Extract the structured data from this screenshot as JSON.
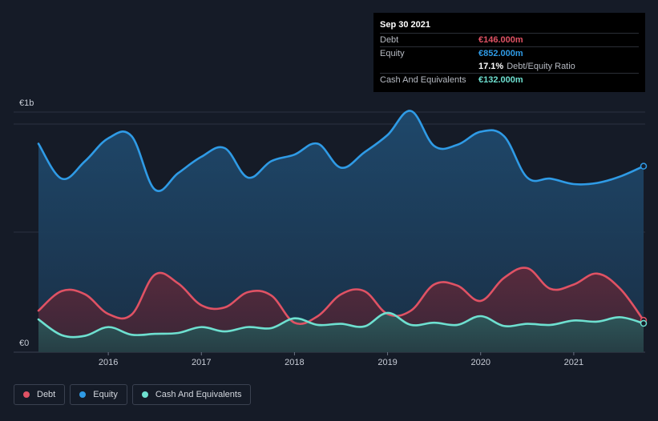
{
  "tooltip": {
    "date": "Sep 30 2021",
    "debt_label": "Debt",
    "debt_value": "€146.000m",
    "equity_label": "Equity",
    "equity_value": "€852.000m",
    "ratio_value": "17.1%",
    "ratio_label": "Debt/Equity Ratio",
    "cash_label": "Cash And Equivalents",
    "cash_value": "€132.000m"
  },
  "legend": [
    {
      "label": "Debt",
      "color": "#e05264"
    },
    {
      "label": "Equity",
      "color": "#2f9be6"
    },
    {
      "label": "Cash And Equivalents",
      "color": "#6ee0d0"
    }
  ],
  "chart_data": {
    "type": "area",
    "y_unit": "€m",
    "ylim": [
      0,
      1100
    ],
    "y_tick_labels": [
      {
        "value": 0,
        "label": "€0"
      },
      {
        "value": 1100,
        "label": "€1b"
      }
    ],
    "x_ticks": [
      "2016",
      "2017",
      "2018",
      "2019",
      "2020",
      "2021"
    ],
    "x_range": [
      2015.25,
      2021.75
    ],
    "colors": {
      "debt": "#e05264",
      "equity": "#2f9be6",
      "cash": "#6ee0d0"
    },
    "series": [
      {
        "name": "Equity",
        "key": "equity",
        "points": [
          [
            2015.25,
            955
          ],
          [
            2015.5,
            795
          ],
          [
            2015.75,
            875
          ],
          [
            2016.0,
            980
          ],
          [
            2016.25,
            990
          ],
          [
            2016.5,
            745
          ],
          [
            2016.75,
            820
          ],
          [
            2017.0,
            895
          ],
          [
            2017.25,
            935
          ],
          [
            2017.5,
            800
          ],
          [
            2017.75,
            875
          ],
          [
            2018.0,
            905
          ],
          [
            2018.25,
            955
          ],
          [
            2018.5,
            845
          ],
          [
            2018.75,
            915
          ],
          [
            2019.0,
            995
          ],
          [
            2019.25,
            1105
          ],
          [
            2019.5,
            945
          ],
          [
            2019.75,
            950
          ],
          [
            2020.0,
            1010
          ],
          [
            2020.25,
            990
          ],
          [
            2020.5,
            800
          ],
          [
            2020.75,
            795
          ],
          [
            2021.0,
            770
          ],
          [
            2021.25,
            775
          ],
          [
            2021.5,
            805
          ],
          [
            2021.75,
            852
          ]
        ]
      },
      {
        "name": "Debt",
        "key": "debt",
        "points": [
          [
            2015.25,
            190
          ],
          [
            2015.5,
            280
          ],
          [
            2015.75,
            265
          ],
          [
            2016.0,
            175
          ],
          [
            2016.25,
            172
          ],
          [
            2016.5,
            355
          ],
          [
            2016.75,
            315
          ],
          [
            2017.0,
            215
          ],
          [
            2017.25,
            205
          ],
          [
            2017.5,
            275
          ],
          [
            2017.75,
            260
          ],
          [
            2018.0,
            135
          ],
          [
            2018.25,
            165
          ],
          [
            2018.5,
            265
          ],
          [
            2018.75,
            280
          ],
          [
            2019.0,
            175
          ],
          [
            2019.25,
            190
          ],
          [
            2019.5,
            310
          ],
          [
            2019.75,
            305
          ],
          [
            2020.0,
            235
          ],
          [
            2020.25,
            340
          ],
          [
            2020.5,
            385
          ],
          [
            2020.75,
            290
          ],
          [
            2021.0,
            310
          ],
          [
            2021.25,
            360
          ],
          [
            2021.5,
            290
          ],
          [
            2021.75,
            146
          ]
        ]
      },
      {
        "name": "Cash And Equivalents",
        "key": "cash",
        "points": [
          [
            2015.25,
            150
          ],
          [
            2015.5,
            78
          ],
          [
            2015.75,
            75
          ],
          [
            2016.0,
            115
          ],
          [
            2016.25,
            80
          ],
          [
            2016.5,
            84
          ],
          [
            2016.75,
            88
          ],
          [
            2017.0,
            115
          ],
          [
            2017.25,
            95
          ],
          [
            2017.5,
            115
          ],
          [
            2017.75,
            110
          ],
          [
            2018.0,
            155
          ],
          [
            2018.25,
            125
          ],
          [
            2018.5,
            130
          ],
          [
            2018.75,
            118
          ],
          [
            2019.0,
            180
          ],
          [
            2019.25,
            125
          ],
          [
            2019.5,
            135
          ],
          [
            2019.75,
            125
          ],
          [
            2020.0,
            165
          ],
          [
            2020.25,
            120
          ],
          [
            2020.5,
            130
          ],
          [
            2020.75,
            125
          ],
          [
            2021.0,
            145
          ],
          [
            2021.25,
            140
          ],
          [
            2021.5,
            160
          ],
          [
            2021.75,
            132
          ]
        ]
      }
    ]
  }
}
